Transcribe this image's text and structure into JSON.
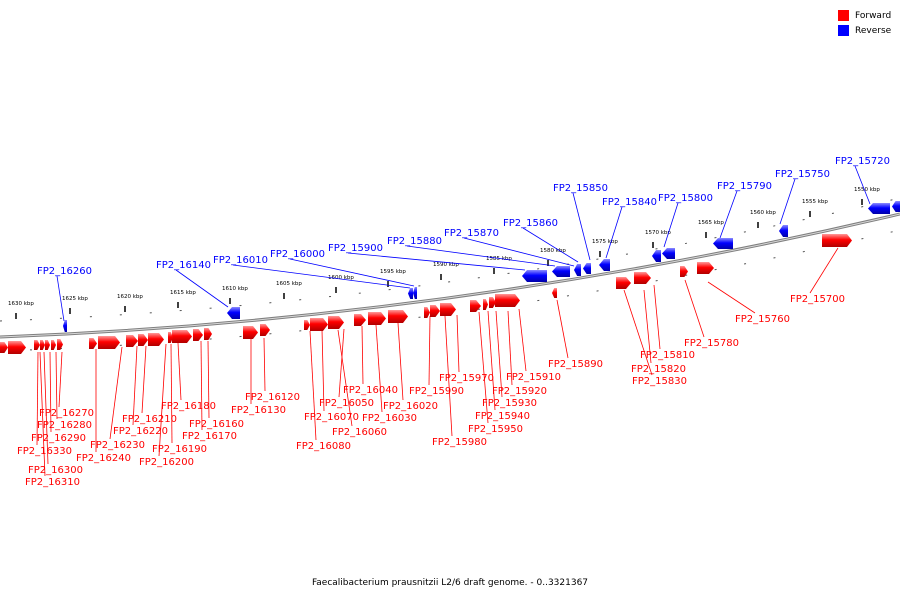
{
  "title": "Faecalibacterium prausnitzii L2/6 draft genome. - 0..3321367",
  "legend": [
    {
      "label": "Forward",
      "color": "#ff0000"
    },
    {
      "label": "Reverse",
      "color": "#0000ff"
    }
  ],
  "colors": {
    "forward": "#ff0000",
    "reverse": "#0000ff",
    "backbone": "#808080"
  },
  "scale_labels": [
    "1630 kbp",
    "1625 kbp",
    "1620 kbp",
    "1615 kbp",
    "1610 kbp",
    "1605 kbp",
    "1600 kbp",
    "1595 kbp",
    "1590 kbp",
    "1585 kbp",
    "1580 kbp",
    "1575 kbp",
    "1570 kbp",
    "1565 kbp",
    "1560 kbp",
    "1555 kbp",
    "1550 kbp"
  ],
  "reverse_genes": [
    "FP2_15720",
    "FP2_15750",
    "FP2_15790",
    "FP2_15800",
    "FP2_15840",
    "FP2_15850",
    "FP2_15860",
    "FP2_15870",
    "FP2_15880",
    "FP2_15900",
    "FP2_16000",
    "FP2_16010",
    "FP2_16140",
    "FP2_16260"
  ],
  "forward_genes": [
    "FP2_15700",
    "FP2_15760",
    "FP2_15780",
    "FP2_15810",
    "FP2_15820",
    "FP2_15830",
    "FP2_15890",
    "FP2_15910",
    "FP2_15920",
    "FP2_15930",
    "FP2_15940",
    "FP2_15950",
    "FP2_15970",
    "FP2_15980",
    "FP2_15990",
    "FP2_16020",
    "FP2_16030",
    "FP2_16040",
    "FP2_16050",
    "FP2_16060",
    "FP2_16070",
    "FP2_16080",
    "FP2_16120",
    "FP2_16130",
    "FP2_16160",
    "FP2_16170",
    "FP2_16180",
    "FP2_16190",
    "FP2_16200",
    "FP2_16210",
    "FP2_16220",
    "FP2_16230",
    "FP2_16240",
    "FP2_16270",
    "FP2_16280",
    "FP2_16290",
    "FP2_16300",
    "FP2_16310",
    "FP2_16330"
  ]
}
